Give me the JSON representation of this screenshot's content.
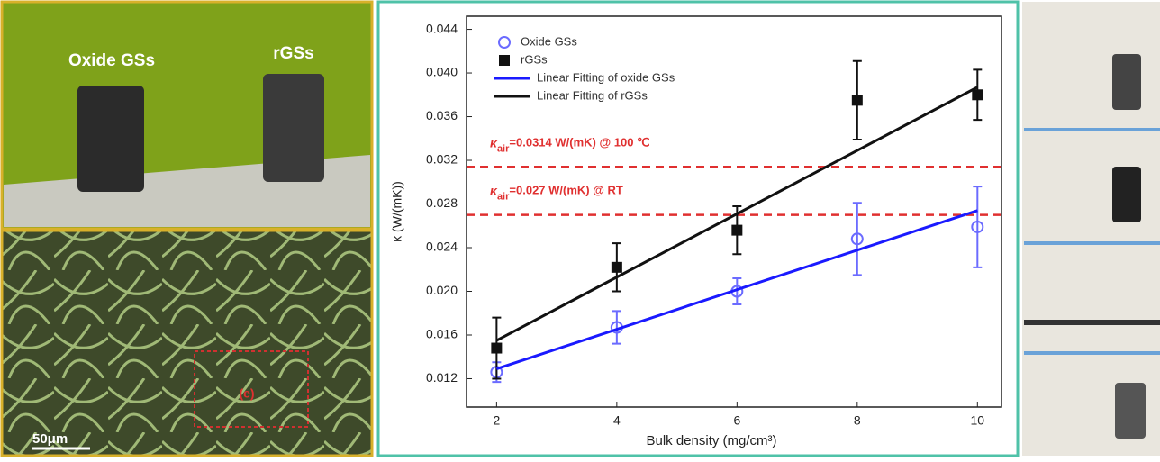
{
  "photos": {
    "labels": [
      "Oxide GSs",
      "rGSs"
    ],
    "scale_bar": "50μm",
    "region_label": "(e)"
  },
  "chart_data": {
    "type": "scatter",
    "xlabel": "Bulk density (mg/cm³)",
    "ylabel": "κ (W/(mK))",
    "x": [
      2,
      4,
      6,
      8,
      10
    ],
    "series": [
      {
        "name": "Oxide GSs",
        "color": "#6b6bff",
        "marker": "circle",
        "values": [
          0.0126,
          0.0167,
          0.02,
          0.0248,
          0.0259
        ],
        "errors": [
          0.0009,
          0.0015,
          0.0012,
          0.0033,
          0.0037
        ]
      },
      {
        "name": "rGSs",
        "color": "#111111",
        "marker": "square",
        "values": [
          0.0148,
          0.0222,
          0.0256,
          0.0375,
          0.038
        ],
        "errors": [
          0.0028,
          0.0022,
          0.0022,
          0.0036,
          0.0023
        ]
      },
      {
        "name": "Linear Fitting of oxide GSs",
        "color": "#1a1aff",
        "x": [
          2,
          10
        ],
        "values": [
          0.0129,
          0.0274
        ]
      },
      {
        "name": "Linear Fitting of rGSs",
        "color": "#111111",
        "x": [
          2,
          10
        ],
        "values": [
          0.0155,
          0.0387
        ]
      }
    ],
    "reference_lines": [
      {
        "value": 0.0314,
        "symbol": "κ",
        "subscript": "air",
        "label": "=0.0314 W/(mK) @ 100 ℃"
      },
      {
        "value": 0.027,
        "symbol": "κ",
        "subscript": "air",
        "label": "=0.027 W/(mK) @ RT"
      }
    ],
    "reference_color": "#e03030",
    "xlim": [
      1.5,
      10.4
    ],
    "ylim": [
      0.0094,
      0.0452
    ],
    "xticks": [
      2,
      4,
      6,
      8,
      10
    ],
    "yticks": [
      0.012,
      0.016,
      {
        "value": 0.02,
        "label": "0.020"
      },
      0.024,
      0.028,
      0.032,
      0.036,
      {
        "value": 0.04,
        "label": "0.040"
      },
      0.044
    ],
    "legend": "upper left"
  }
}
